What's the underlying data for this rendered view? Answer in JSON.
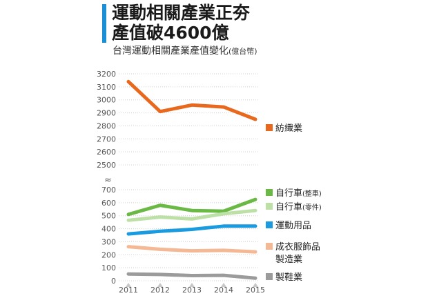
{
  "title_line1": "運動相關產業正夯",
  "title_line2": "產值破4600億",
  "subtitle": "台灣運動相關產業產值變化",
  "unit": "(億台幣)",
  "colors": {
    "accent_bar": "#1b8fd6",
    "grid": "#d0d0d0",
    "marker": "#c8c8c8"
  },
  "chart_data": {
    "type": "line",
    "x": [
      "2011",
      "2012",
      "2013",
      "2014",
      "2015"
    ],
    "axis_break": "≈",
    "upper_axis": {
      "ylim": [
        2500,
        3200
      ],
      "ticks": [
        2500,
        2600,
        2700,
        2800,
        2900,
        3000,
        3100,
        3200
      ]
    },
    "lower_axis": {
      "ylim": [
        0,
        700
      ],
      "ticks": [
        0,
        100,
        200,
        300,
        400,
        500,
        600,
        700
      ]
    },
    "series": [
      {
        "id": "textile",
        "name": "紡織業",
        "axis": "upper",
        "color": "#e8681e",
        "values": [
          3140,
          2910,
          2960,
          2945,
          2850
        ]
      },
      {
        "id": "bike_whole",
        "name": "自行車",
        "name_suffix": "(整車)",
        "axis": "lower",
        "color": "#6ab944",
        "values": [
          510,
          580,
          540,
          535,
          625
        ]
      },
      {
        "id": "bike_parts",
        "name": "自行車",
        "name_suffix": "(零件)",
        "axis": "lower",
        "color": "#bde0a6",
        "values": [
          465,
          490,
          475,
          515,
          540
        ]
      },
      {
        "id": "sporting_goods",
        "name": "運動用品",
        "axis": "lower",
        "color": "#1a9be0",
        "values": [
          360,
          380,
          395,
          420,
          420
        ]
      },
      {
        "id": "apparel",
        "name": "成衣服飾品",
        "name_line2": "製造業",
        "axis": "lower",
        "color": "#f4b894",
        "values": [
          262,
          242,
          230,
          234,
          222
        ]
      },
      {
        "id": "shoes",
        "name": "製鞋業",
        "axis": "lower",
        "color": "#9b9b9b",
        "values": [
          52,
          48,
          40,
          42,
          20
        ]
      }
    ]
  }
}
